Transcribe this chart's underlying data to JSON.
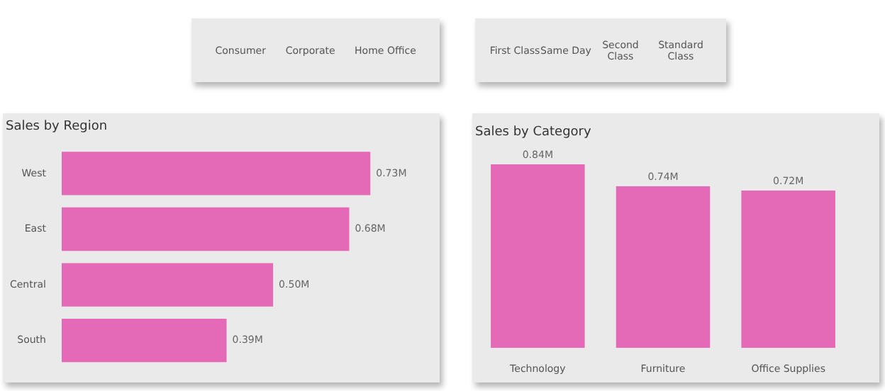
{
  "chart_data": [
    {
      "type": "other",
      "annotations": [
        "Consumer",
        "Corporate",
        "Home Office"
      ]
    },
    {
      "type": "other",
      "annotations": [
        "First Class",
        "Same Day",
        "Second Class",
        "Standard Class"
      ]
    },
    {
      "type": "bar",
      "title": "Sales by Region",
      "orientation": "horizontal",
      "categories": [
        "West",
        "East",
        "Central",
        "South"
      ],
      "values": [
        0.73,
        0.68,
        0.5,
        0.39
      ],
      "value_labels": [
        "0.73M",
        "0.68M",
        "0.50M",
        "0.39M"
      ],
      "color": "#e469b6",
      "tick_labels": "y"
    },
    {
      "type": "bar",
      "title": "Sales by Category",
      "categories": [
        "Technology",
        "Furniture",
        "Office Supplies"
      ],
      "values": [
        0.84,
        0.74,
        0.72
      ],
      "value_labels": [
        "0.84M",
        "0.74M",
        "0.72M"
      ],
      "color": "#e469b6",
      "tick_labels": "x"
    }
  ]
}
